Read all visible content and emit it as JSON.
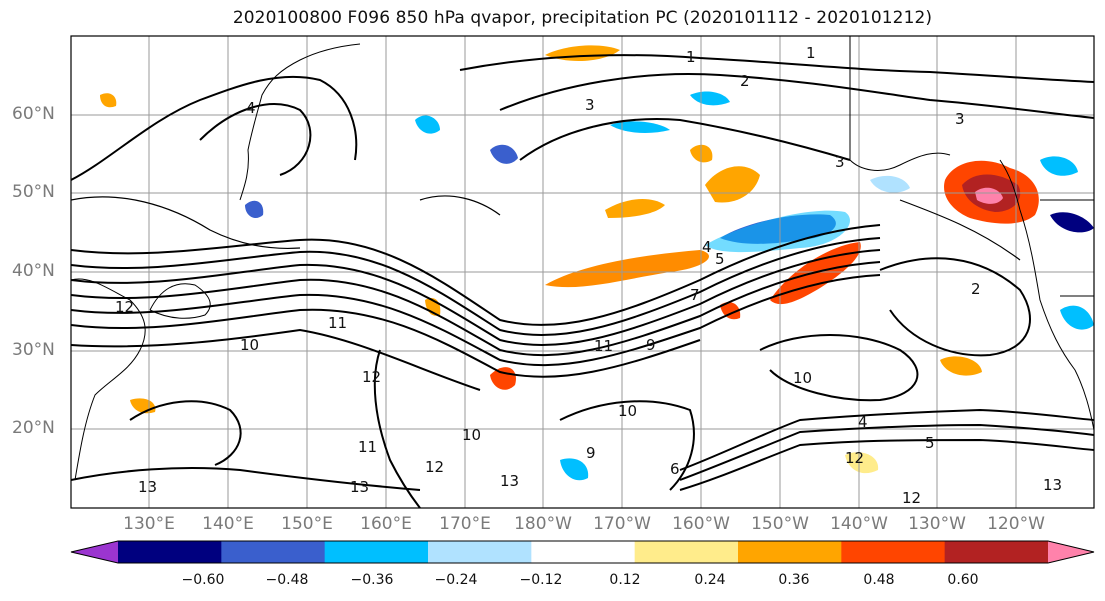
{
  "title": "2020100800 F096 850 hPa qvapor, precipitation PC (2020101112 - 2020101212)",
  "map": {
    "lat_labels": [
      "60°N",
      "50°N",
      "40°N",
      "30°N",
      "20°N"
    ],
    "lon_labels": [
      "130°E",
      "140°E",
      "150°E",
      "160°E",
      "170°E",
      "180°W",
      "170°W",
      "160°W",
      "150°W",
      "140°W",
      "130°W",
      "120°W"
    ],
    "contour_labels": [
      "1",
      "1",
      "2",
      "3",
      "3",
      "3",
      "4",
      "4",
      "5",
      "7",
      "9",
      "10",
      "10",
      "10",
      "11",
      "11",
      "11",
      "12",
      "12",
      "12",
      "12",
      "13",
      "13",
      "13",
      "13",
      "9",
      "10",
      "6",
      "4",
      "5",
      "12",
      "2"
    ]
  },
  "colorbar": {
    "ticks": [
      "−0.60",
      "−0.48",
      "−0.36",
      "−0.24",
      "−0.12",
      "0.12",
      "0.24",
      "0.36",
      "0.48",
      "0.60"
    ],
    "colors": [
      "#9b35d0",
      "#00007f",
      "#3a5fcd",
      "#00bfff",
      "#b0e2ff",
      "#ffffff",
      "#ffec8b",
      "#ffa500",
      "#ff4500",
      "#b22222",
      "#ff82ab"
    ]
  }
}
